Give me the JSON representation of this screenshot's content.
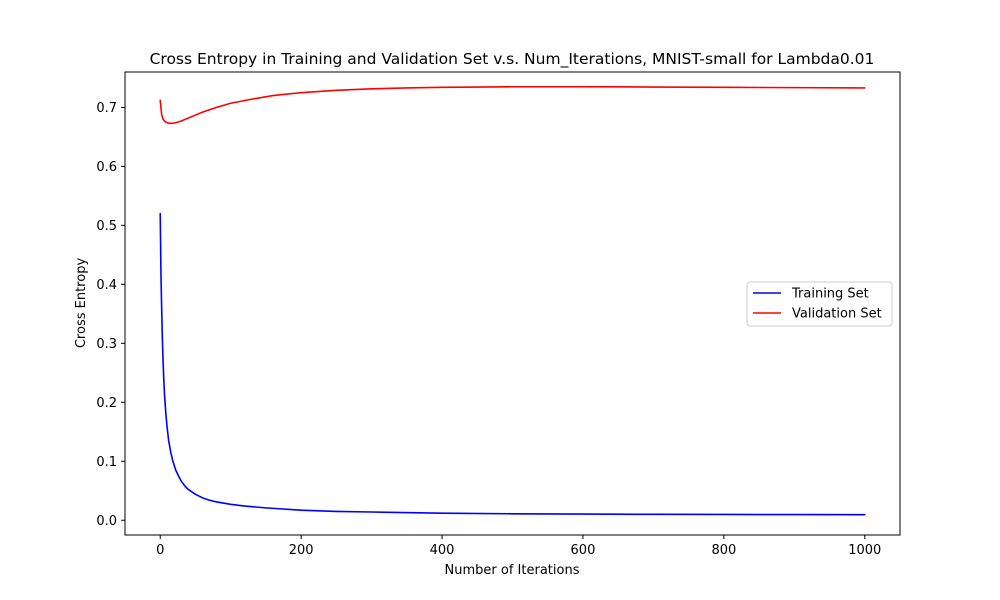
{
  "chart_data": {
    "type": "line",
    "title": "Cross Entropy in Training and Validation Set v.s. Num_Iterations, MNIST-small for Lambda0.01",
    "xlabel": "Number of Iterations",
    "ylabel": "Cross Entropy",
    "xlim": [
      -50,
      1050
    ],
    "ylim": [
      -0.025,
      0.76
    ],
    "xticks": [
      0,
      200,
      400,
      600,
      800,
      1000
    ],
    "xtick_labels": [
      "0",
      "200",
      "400",
      "600",
      "800",
      "1000"
    ],
    "yticks": [
      0.0,
      0.1,
      0.2,
      0.3,
      0.4,
      0.5,
      0.6,
      0.7
    ],
    "ytick_labels": [
      "0.0",
      "0.1",
      "0.2",
      "0.3",
      "0.4",
      "0.5",
      "0.6",
      "0.7"
    ],
    "grid": false,
    "legend": {
      "position": "center-right"
    },
    "series": [
      {
        "name": "Training Set",
        "color": "#0000ff",
        "x": [
          0,
          1,
          2,
          3,
          4,
          5,
          6,
          8,
          10,
          12,
          15,
          18,
          22,
          26,
          30,
          35,
          40,
          50,
          60,
          70,
          80,
          100,
          120,
          150,
          200,
          250,
          300,
          400,
          500,
          600,
          700,
          800,
          900,
          1000
        ],
        "y": [
          0.52,
          0.42,
          0.36,
          0.31,
          0.27,
          0.24,
          0.215,
          0.18,
          0.155,
          0.135,
          0.115,
          0.1,
          0.085,
          0.075,
          0.066,
          0.058,
          0.052,
          0.044,
          0.038,
          0.034,
          0.031,
          0.027,
          0.024,
          0.021,
          0.017,
          0.015,
          0.014,
          0.012,
          0.011,
          0.0105,
          0.01,
          0.0098,
          0.0096,
          0.0095
        ]
      },
      {
        "name": "Validation Set",
        "color": "#ff0000",
        "x": [
          0,
          2,
          4,
          6,
          8,
          10,
          13,
          16,
          20,
          25,
          30,
          40,
          50,
          60,
          80,
          100,
          130,
          160,
          200,
          250,
          300,
          350,
          400,
          450,
          500,
          550,
          600,
          650,
          700,
          800,
          900,
          1000
        ],
        "y": [
          0.712,
          0.688,
          0.68,
          0.677,
          0.675,
          0.674,
          0.673,
          0.673,
          0.6735,
          0.675,
          0.677,
          0.682,
          0.687,
          0.692,
          0.7,
          0.707,
          0.714,
          0.72,
          0.725,
          0.729,
          0.7315,
          0.733,
          0.734,
          0.7345,
          0.735,
          0.735,
          0.735,
          0.7348,
          0.7345,
          0.734,
          0.7335,
          0.733
        ]
      }
    ]
  }
}
